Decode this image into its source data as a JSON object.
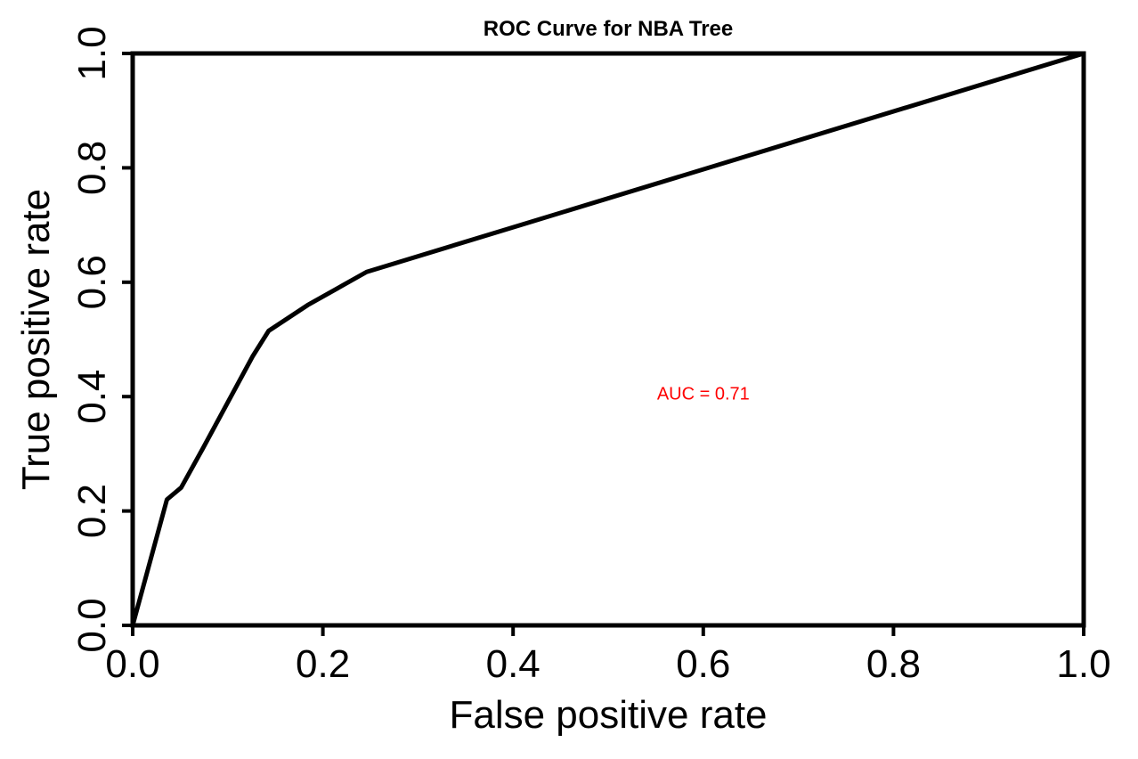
{
  "chart_data": {
    "type": "line",
    "title": "ROC Curve for NBA Tree",
    "xlabel": "False positive rate",
    "ylabel": "True positive rate",
    "xlim": [
      0,
      1
    ],
    "ylim": [
      0,
      1
    ],
    "grid": false,
    "x_ticks": [
      0,
      0.2,
      0.4,
      0.6,
      0.8,
      1
    ],
    "x_tick_labels": [
      "0.0",
      "0.2",
      "0.4",
      "0.6",
      "0.8",
      "1.0"
    ],
    "y_ticks": [
      0,
      0.2,
      0.4,
      0.6,
      0.8,
      1
    ],
    "y_tick_labels": [
      "0.0",
      "0.2",
      "0.4",
      "0.6",
      "0.8",
      "1.0"
    ],
    "series": [
      {
        "name": "ROC",
        "color": "#000000",
        "x": [
          0,
          0.036,
          0.051,
          0.074,
          0.101,
          0.126,
          0.143,
          0.184,
          0.246,
          1.0
        ],
        "y": [
          0,
          0.22,
          0.241,
          0.31,
          0.393,
          0.47,
          0.515,
          0.56,
          0.618,
          1.0
        ]
      }
    ],
    "annotations": [
      {
        "text": "AUC = 0.71",
        "x": 0.6,
        "y": 0.395,
        "color": "#ff0000"
      }
    ]
  }
}
